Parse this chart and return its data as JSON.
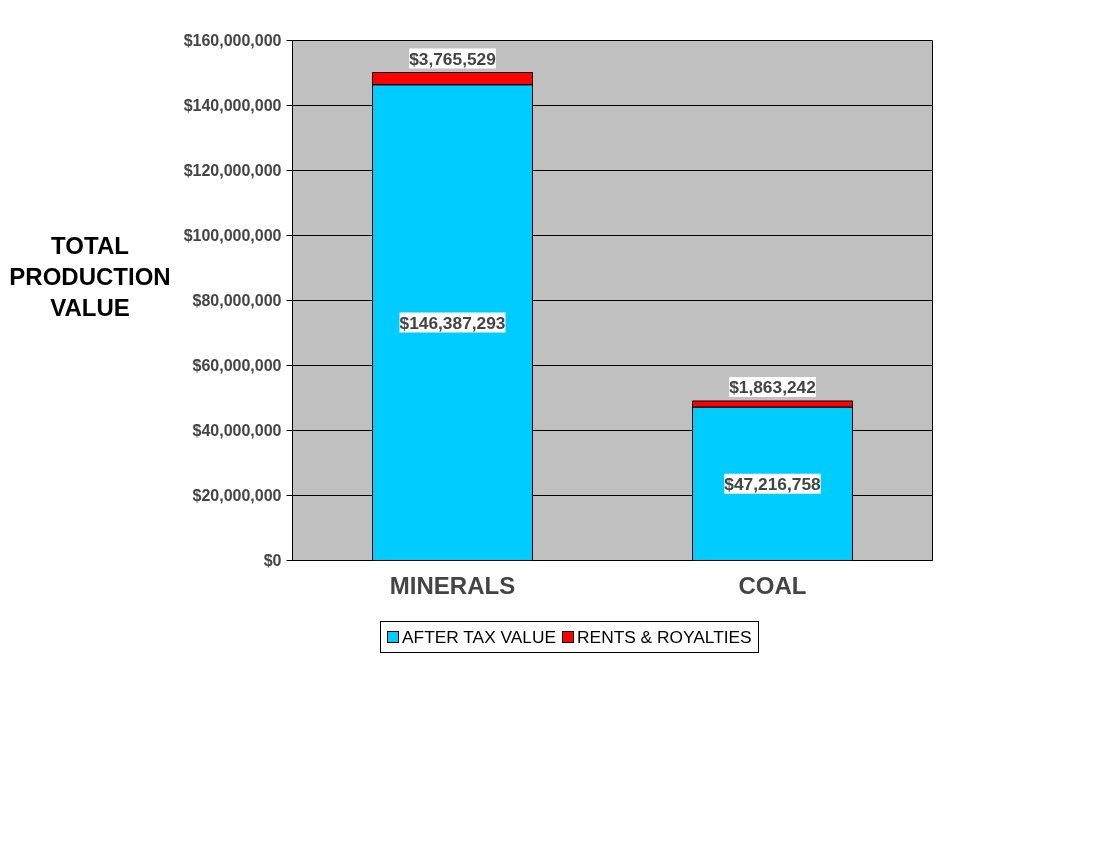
{
  "chart_data": {
    "type": "bar",
    "stacked": true,
    "ylabel": "TOTAL PRODUCTION VALUE",
    "categories": [
      "MINERALS",
      "COAL"
    ],
    "series": [
      {
        "name": "AFTER TAX VALUE",
        "color": "#00ccff",
        "values": [
          146387293,
          47216758
        ],
        "value_labels": [
          "$146,387,293",
          "$47,216,758"
        ]
      },
      {
        "name": "RENTS & ROYALTIES",
        "color": "#ff0000",
        "values": [
          3765529,
          1863242
        ],
        "value_labels": [
          "$3,765,529",
          "$1,863,242"
        ]
      }
    ],
    "ylim": [
      0,
      160000000
    ],
    "yticks": [
      {
        "value": 0,
        "label": "$0"
      },
      {
        "value": 20000000,
        "label": "$20,000,000"
      },
      {
        "value": 40000000,
        "label": "$40,000,000"
      },
      {
        "value": 60000000,
        "label": "$60,000,000"
      },
      {
        "value": 80000000,
        "label": "$80,000,000"
      },
      {
        "value": 100000000,
        "label": "$100,000,000"
      },
      {
        "value": 120000000,
        "label": "$120,000,000"
      },
      {
        "value": 140000000,
        "label": "$140,000,000"
      },
      {
        "value": 160000000,
        "label": "$160,000,000"
      }
    ],
    "grid": "y",
    "legend": "bottom"
  }
}
